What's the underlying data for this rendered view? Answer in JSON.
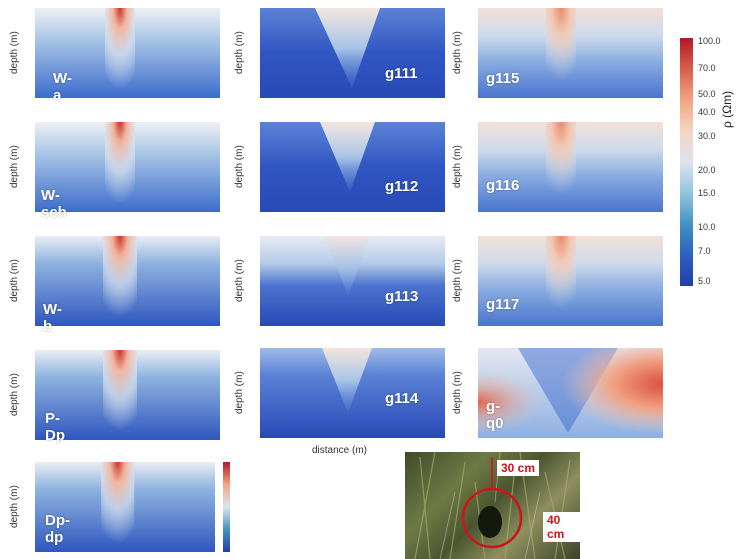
{
  "chart_data": {
    "type": "heatmap",
    "ylabel": "depth (m)",
    "xlabel": "distance (m)",
    "colorbar": {
      "label": "ρ (Ωm)",
      "ticks": [
        "100.0",
        "70.0",
        "50.0",
        "40.0",
        "30.0",
        "20.0",
        "15.0",
        "10.0",
        "7.0",
        "5.0"
      ],
      "colors": [
        "#b2182b",
        "#f4a582",
        "#dde4ee",
        "#4393c3",
        "#2140a8"
      ]
    },
    "panels": [
      {
        "label": "W-a"
      },
      {
        "label": "W-sch"
      },
      {
        "label": "W-b"
      },
      {
        "label": "P-Dp"
      },
      {
        "label": "Dp-dp"
      },
      {
        "label": "g111"
      },
      {
        "label": "g112"
      },
      {
        "label": "g113"
      },
      {
        "label": "g114"
      },
      {
        "label": "g115"
      },
      {
        "label": "g116"
      },
      {
        "label": "g117"
      },
      {
        "label": "g-q0"
      }
    ]
  },
  "photo": {
    "tag_top": "30 cm",
    "tag_side": "40 cm"
  }
}
